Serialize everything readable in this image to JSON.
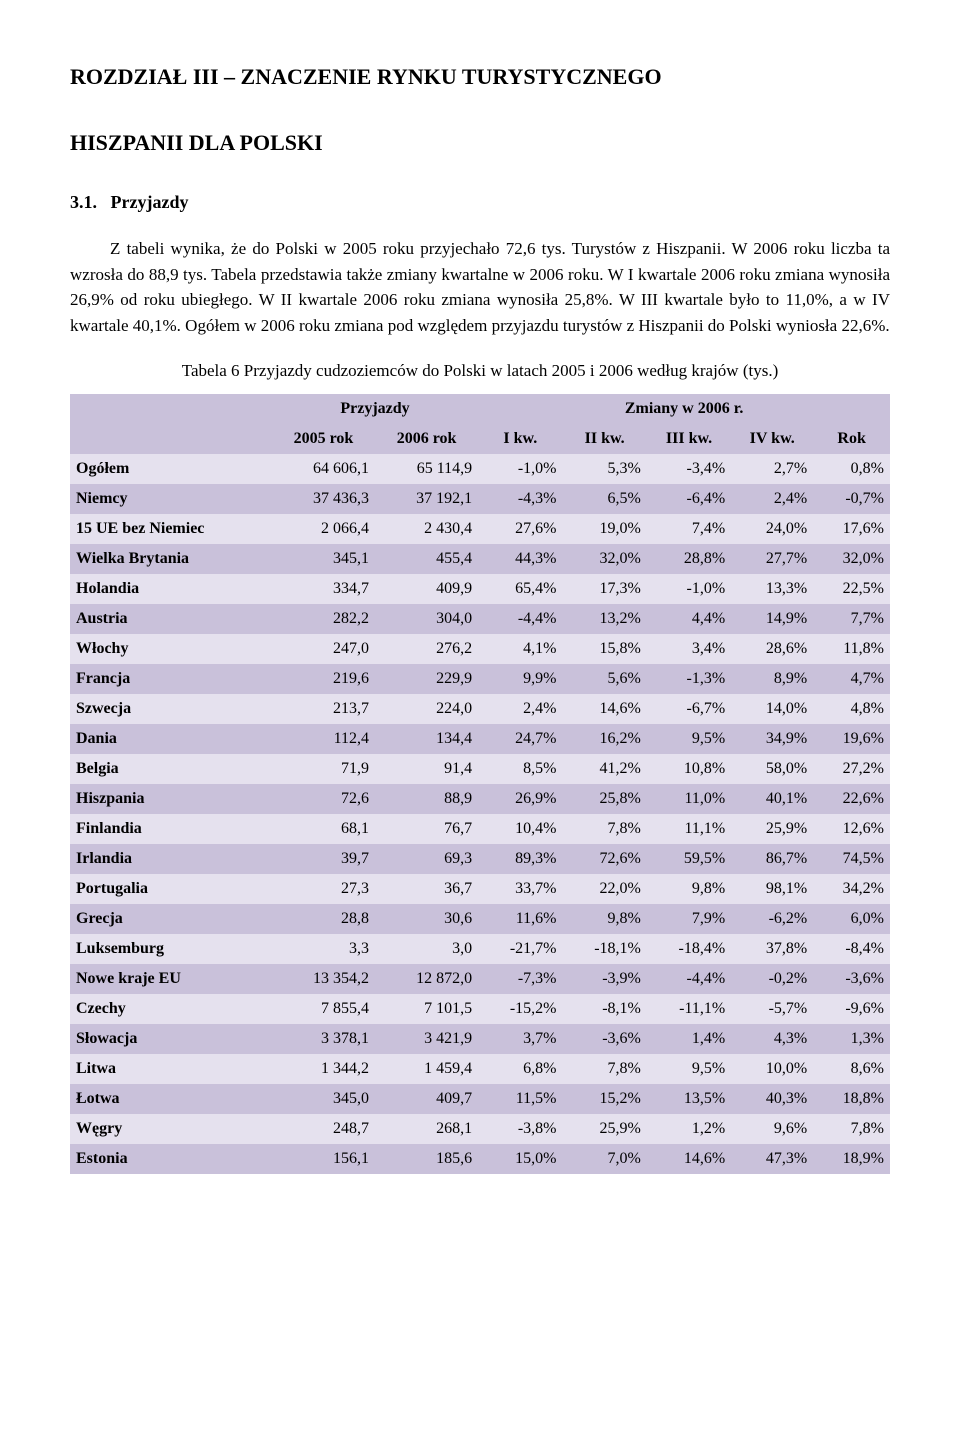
{
  "heading": "ROZDZIAŁ III – ZNACZENIE RYNKU TURYSTYCZNEGO",
  "subheading": "HISZPANII DLA POLSKI",
  "section_number": "3.1.",
  "section_title": "Przyjazdy",
  "paragraph1": "Z tabeli wynika, że do Polski w 2005 roku przyjechało 72,6 tys. Turystów z Hiszpanii. W 2006 roku liczba ta wzrosła do 88,9 tys. Tabela przedstawia także zmiany kwartalne w 2006 roku. W I kwartale 2006 roku zmiana wynosiła 26,9% od roku ubiegłego. W II kwartale 2006 roku zmiana wynosiła 25,8%. W III kwartale było to 11,0%, a w IV kwartale 40,1%. Ogółem w 2006 roku zmiana pod względem przyjazdu turystów z Hiszpanii do Polski wyniosła 22,6%.",
  "table_caption": "Tabela 6 Przyjazdy cudzoziemców do Polski w latach 2005 i 2006 według krajów (tys.)",
  "table": {
    "header_group_a": "Przyjazdy",
    "header_group_b": "Zmiany w 2006 r.",
    "col_2005": "2005 rok",
    "col_2006": "2006 rok",
    "col_k1": "I kw.",
    "col_k2": "II kw.",
    "col_k3": "III kw.",
    "col_k4": "IV kw.",
    "col_rok": "Rok",
    "row_colors": {
      "even": "#c9c1da",
      "odd": "#e5e1ee",
      "header": "#c9c1da"
    },
    "rows": [
      {
        "label": "Ogółem",
        "v2005": "64 606,1",
        "v2006": "65 114,9",
        "k1": "-1,0%",
        "k2": "5,3%",
        "k3": "-3,4%",
        "k4": "2,7%",
        "rok": "0,8%"
      },
      {
        "label": "Niemcy",
        "v2005": "37 436,3",
        "v2006": "37 192,1",
        "k1": "-4,3%",
        "k2": "6,5%",
        "k3": "-6,4%",
        "k4": "2,4%",
        "rok": "-0,7%"
      },
      {
        "label": "15 UE bez Niemiec",
        "v2005": "2 066,4",
        "v2006": "2 430,4",
        "k1": "27,6%",
        "k2": "19,0%",
        "k3": "7,4%",
        "k4": "24,0%",
        "rok": "17,6%"
      },
      {
        "label": "Wielka Brytania",
        "v2005": "345,1",
        "v2006": "455,4",
        "k1": "44,3%",
        "k2": "32,0%",
        "k3": "28,8%",
        "k4": "27,7%",
        "rok": "32,0%"
      },
      {
        "label": "Holandia",
        "v2005": "334,7",
        "v2006": "409,9",
        "k1": "65,4%",
        "k2": "17,3%",
        "k3": "-1,0%",
        "k4": "13,3%",
        "rok": "22,5%"
      },
      {
        "label": "Austria",
        "v2005": "282,2",
        "v2006": "304,0",
        "k1": "-4,4%",
        "k2": "13,2%",
        "k3": "4,4%",
        "k4": "14,9%",
        "rok": "7,7%"
      },
      {
        "label": "Włochy",
        "v2005": "247,0",
        "v2006": "276,2",
        "k1": "4,1%",
        "k2": "15,8%",
        "k3": "3,4%",
        "k4": "28,6%",
        "rok": "11,8%"
      },
      {
        "label": "Francja",
        "v2005": "219,6",
        "v2006": "229,9",
        "k1": "9,9%",
        "k2": "5,6%",
        "k3": "-1,3%",
        "k4": "8,9%",
        "rok": "4,7%"
      },
      {
        "label": "Szwecja",
        "v2005": "213,7",
        "v2006": "224,0",
        "k1": "2,4%",
        "k2": "14,6%",
        "k3": "-6,7%",
        "k4": "14,0%",
        "rok": "4,8%"
      },
      {
        "label": "Dania",
        "v2005": "112,4",
        "v2006": "134,4",
        "k1": "24,7%",
        "k2": "16,2%",
        "k3": "9,5%",
        "k4": "34,9%",
        "rok": "19,6%"
      },
      {
        "label": "Belgia",
        "v2005": "71,9",
        "v2006": "91,4",
        "k1": "8,5%",
        "k2": "41,2%",
        "k3": "10,8%",
        "k4": "58,0%",
        "rok": "27,2%"
      },
      {
        "label": "Hiszpania",
        "v2005": "72,6",
        "v2006": "88,9",
        "k1": "26,9%",
        "k2": "25,8%",
        "k3": "11,0%",
        "k4": "40,1%",
        "rok": "22,6%"
      },
      {
        "label": "Finlandia",
        "v2005": "68,1",
        "v2006": "76,7",
        "k1": "10,4%",
        "k2": "7,8%",
        "k3": "11,1%",
        "k4": "25,9%",
        "rok": "12,6%"
      },
      {
        "label": "Irlandia",
        "v2005": "39,7",
        "v2006": "69,3",
        "k1": "89,3%",
        "k2": "72,6%",
        "k3": "59,5%",
        "k4": "86,7%",
        "rok": "74,5%"
      },
      {
        "label": "Portugalia",
        "v2005": "27,3",
        "v2006": "36,7",
        "k1": "33,7%",
        "k2": "22,0%",
        "k3": "9,8%",
        "k4": "98,1%",
        "rok": "34,2%"
      },
      {
        "label": "Grecja",
        "v2005": "28,8",
        "v2006": "30,6",
        "k1": "11,6%",
        "k2": "9,8%",
        "k3": "7,9%",
        "k4": "-6,2%",
        "rok": "6,0%"
      },
      {
        "label": "Luksemburg",
        "v2005": "3,3",
        "v2006": "3,0",
        "k1": "-21,7%",
        "k2": "-18,1%",
        "k3": "-18,4%",
        "k4": "37,8%",
        "rok": "-8,4%"
      },
      {
        "label": "Nowe kraje EU",
        "v2005": "13 354,2",
        "v2006": "12 872,0",
        "k1": "-7,3%",
        "k2": "-3,9%",
        "k3": "-4,4%",
        "k4": "-0,2%",
        "rok": "-3,6%"
      },
      {
        "label": "Czechy",
        "v2005": "7 855,4",
        "v2006": "7 101,5",
        "k1": "-15,2%",
        "k2": "-8,1%",
        "k3": "-11,1%",
        "k4": "-5,7%",
        "rok": "-9,6%"
      },
      {
        "label": "Słowacja",
        "v2005": "3 378,1",
        "v2006": "3 421,9",
        "k1": "3,7%",
        "k2": "-3,6%",
        "k3": "1,4%",
        "k4": "4,3%",
        "rok": "1,3%"
      },
      {
        "label": "Litwa",
        "v2005": "1 344,2",
        "v2006": "1 459,4",
        "k1": "6,8%",
        "k2": "7,8%",
        "k3": "9,5%",
        "k4": "10,0%",
        "rok": "8,6%"
      },
      {
        "label": "Łotwa",
        "v2005": "345,0",
        "v2006": "409,7",
        "k1": "11,5%",
        "k2": "15,2%",
        "k3": "13,5%",
        "k4": "40,3%",
        "rok": "18,8%"
      },
      {
        "label": "Węgry",
        "v2005": "248,7",
        "v2006": "268,1",
        "k1": "-3,8%",
        "k2": "25,9%",
        "k3": "1,2%",
        "k4": "9,6%",
        "rok": "7,8%"
      },
      {
        "label": "Estonia",
        "v2005": "156,1",
        "v2006": "185,6",
        "k1": "15,0%",
        "k2": "7,0%",
        "k3": "14,6%",
        "k4": "47,3%",
        "rok": "18,9%"
      }
    ]
  }
}
